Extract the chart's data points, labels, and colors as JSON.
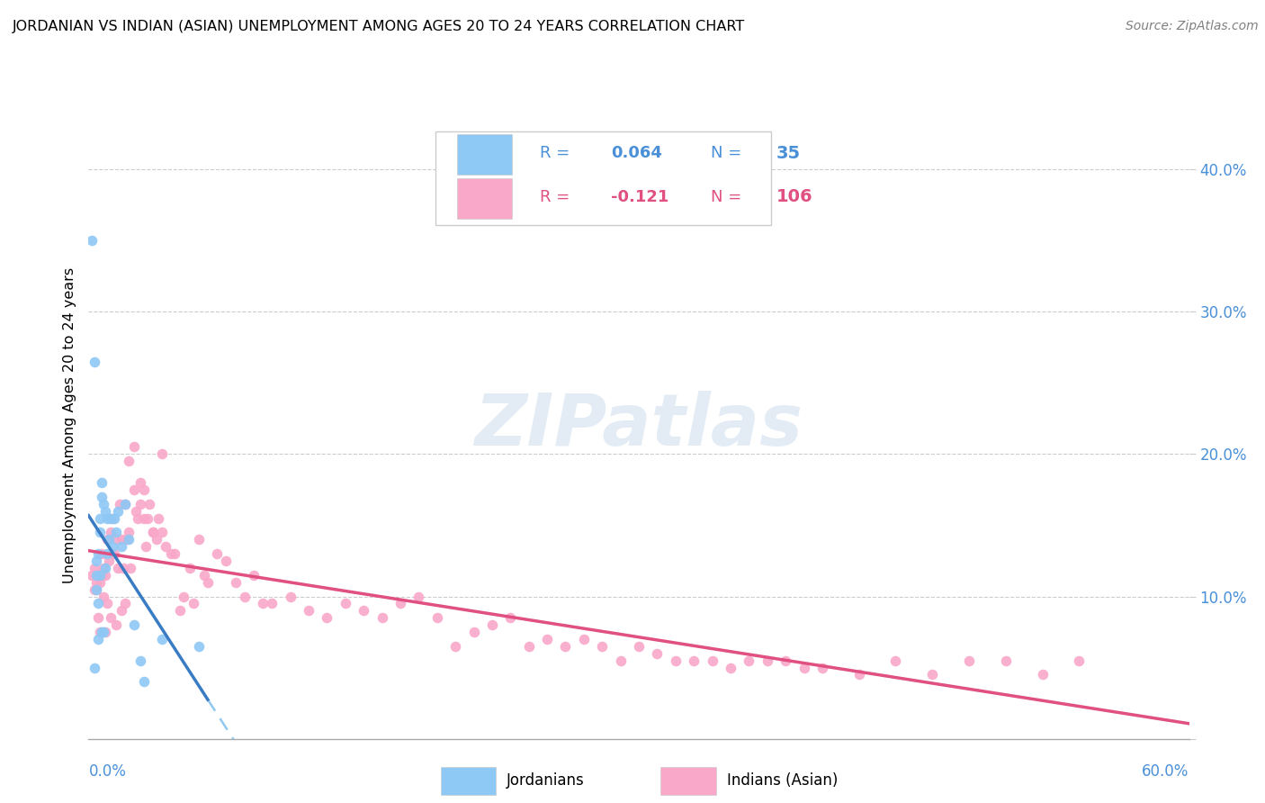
{
  "title": "JORDANIAN VS INDIAN (ASIAN) UNEMPLOYMENT AMONG AGES 20 TO 24 YEARS CORRELATION CHART",
  "source": "Source: ZipAtlas.com",
  "ylabel": "Unemployment Among Ages 20 to 24 years",
  "xlim": [
    0.0,
    0.6
  ],
  "ylim": [
    0.0,
    0.44
  ],
  "jordanian_color": "#8EC8F5",
  "indian_color": "#F9A8C9",
  "jordanian_line_color": "#3A7CC4",
  "indian_line_color": "#E05080",
  "jordanian_line_dash_color": "#90C8F0",
  "R_jordanian": 0.064,
  "N_jordanian": 35,
  "R_indian": -0.121,
  "N_indian": 106,
  "legend_label_jordanian": "Jordanians",
  "legend_label_indian": "Indians (Asian)",
  "watermark": "ZIPatlas",
  "jordanian_x": [
    0.002,
    0.003,
    0.003,
    0.004,
    0.004,
    0.004,
    0.005,
    0.005,
    0.005,
    0.006,
    0.006,
    0.006,
    0.007,
    0.007,
    0.007,
    0.008,
    0.008,
    0.009,
    0.009,
    0.01,
    0.01,
    0.011,
    0.012,
    0.013,
    0.014,
    0.015,
    0.016,
    0.018,
    0.02,
    0.022,
    0.025,
    0.028,
    0.03,
    0.04,
    0.06
  ],
  "jordanian_y": [
    0.35,
    0.265,
    0.05,
    0.125,
    0.115,
    0.105,
    0.13,
    0.095,
    0.07,
    0.155,
    0.145,
    0.115,
    0.18,
    0.17,
    0.075,
    0.165,
    0.075,
    0.16,
    0.12,
    0.155,
    0.13,
    0.14,
    0.155,
    0.135,
    0.155,
    0.145,
    0.16,
    0.135,
    0.165,
    0.14,
    0.08,
    0.055,
    0.04,
    0.07,
    0.065
  ],
  "indian_x": [
    0.002,
    0.003,
    0.004,
    0.005,
    0.006,
    0.007,
    0.008,
    0.009,
    0.01,
    0.011,
    0.012,
    0.013,
    0.014,
    0.015,
    0.016,
    0.017,
    0.018,
    0.019,
    0.02,
    0.021,
    0.022,
    0.023,
    0.025,
    0.026,
    0.027,
    0.028,
    0.03,
    0.031,
    0.032,
    0.033,
    0.035,
    0.037,
    0.038,
    0.04,
    0.042,
    0.045,
    0.047,
    0.05,
    0.052,
    0.055,
    0.057,
    0.06,
    0.063,
    0.065,
    0.07,
    0.075,
    0.08,
    0.085,
    0.09,
    0.095,
    0.1,
    0.11,
    0.12,
    0.13,
    0.14,
    0.15,
    0.16,
    0.17,
    0.18,
    0.19,
    0.2,
    0.21,
    0.22,
    0.23,
    0.24,
    0.25,
    0.26,
    0.27,
    0.28,
    0.29,
    0.3,
    0.31,
    0.32,
    0.33,
    0.34,
    0.35,
    0.36,
    0.37,
    0.38,
    0.39,
    0.4,
    0.42,
    0.44,
    0.46,
    0.48,
    0.5,
    0.52,
    0.54,
    0.003,
    0.004,
    0.005,
    0.006,
    0.007,
    0.008,
    0.009,
    0.01,
    0.012,
    0.015,
    0.018,
    0.02,
    0.022,
    0.025,
    0.028,
    0.03,
    0.035,
    0.04
  ],
  "indian_y": [
    0.115,
    0.12,
    0.105,
    0.115,
    0.11,
    0.13,
    0.12,
    0.115,
    0.14,
    0.125,
    0.145,
    0.155,
    0.13,
    0.14,
    0.12,
    0.165,
    0.14,
    0.12,
    0.165,
    0.14,
    0.145,
    0.12,
    0.175,
    0.16,
    0.155,
    0.18,
    0.155,
    0.135,
    0.155,
    0.165,
    0.145,
    0.14,
    0.155,
    0.145,
    0.135,
    0.13,
    0.13,
    0.09,
    0.1,
    0.12,
    0.095,
    0.14,
    0.115,
    0.11,
    0.13,
    0.125,
    0.11,
    0.1,
    0.115,
    0.095,
    0.095,
    0.1,
    0.09,
    0.085,
    0.095,
    0.09,
    0.085,
    0.095,
    0.1,
    0.085,
    0.065,
    0.075,
    0.08,
    0.085,
    0.065,
    0.07,
    0.065,
    0.07,
    0.065,
    0.055,
    0.065,
    0.06,
    0.055,
    0.055,
    0.055,
    0.05,
    0.055,
    0.055,
    0.055,
    0.05,
    0.05,
    0.045,
    0.055,
    0.045,
    0.055,
    0.055,
    0.045,
    0.055,
    0.105,
    0.11,
    0.085,
    0.075,
    0.115,
    0.1,
    0.075,
    0.095,
    0.085,
    0.08,
    0.09,
    0.095,
    0.195,
    0.205,
    0.165,
    0.175,
    0.145,
    0.2
  ]
}
